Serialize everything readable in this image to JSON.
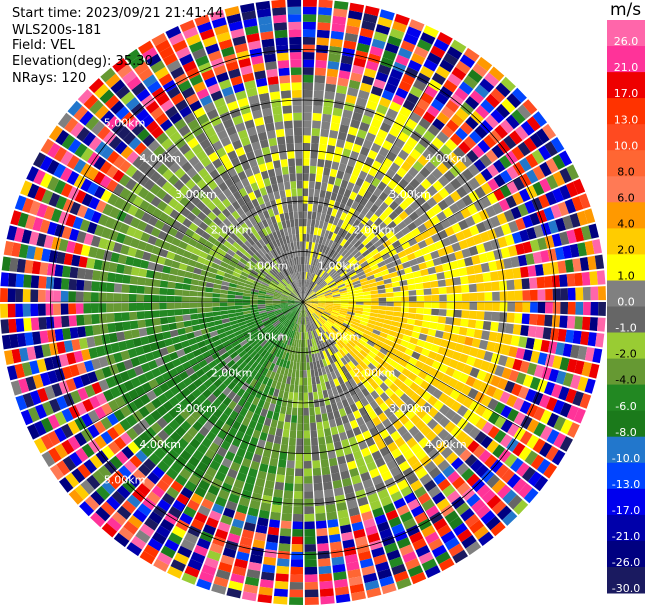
{
  "header": {
    "start_time": "Start time: 2023/09/21 21:41:44",
    "instrument": "WLS200s-181",
    "field": "Field: VEL",
    "elevation": "Elevation(deg): 35.30",
    "nrays": "NRays: 120"
  },
  "chart_data": {
    "type": "heatmap",
    "projection": "polar (PPI scan)",
    "field": "VEL",
    "unit": "m/s",
    "nrays": 120,
    "elevation_deg": 35.3,
    "range_km": [
      0,
      6.0
    ],
    "range_rings_km": [
      1.0,
      2.0,
      3.0,
      4.0,
      5.0
    ],
    "ring_labels": [
      "1.00km",
      "2.00km",
      "3.00km",
      "4.00km",
      "5.00km"
    ],
    "grid": true,
    "colorbar": {
      "placement": "right",
      "ticks": [
        "26.0",
        "21.0",
        "17.0",
        "13.0",
        "10.0",
        "8.0",
        "6.0",
        "4.0",
        "2.0",
        "1.0",
        "0.0",
        "-1.0",
        "-2.0",
        "-4.0",
        "-6.0",
        "-8.0",
        "-10.0",
        "-13.0",
        "-17.0",
        "-21.0",
        "-26.0",
        "-30.0"
      ],
      "bands": [
        {
          "lo": 26,
          "hi": 30,
          "color": "#ff66aa"
        },
        {
          "lo": 21,
          "hi": 26,
          "color": "#ff3399"
        },
        {
          "lo": 17,
          "hi": 21,
          "color": "#ee0000"
        },
        {
          "lo": 13,
          "hi": 17,
          "color": "#ff3300"
        },
        {
          "lo": 10,
          "hi": 13,
          "color": "#ff4a20"
        },
        {
          "lo": 8,
          "hi": 10,
          "color": "#ff6633"
        },
        {
          "lo": 6,
          "hi": 8,
          "color": "#ff7a55"
        },
        {
          "lo": 4,
          "hi": 6,
          "color": "#ff9900"
        },
        {
          "lo": 2,
          "hi": 4,
          "color": "#ffcc00"
        },
        {
          "lo": 1,
          "hi": 2,
          "color": "#ffff00"
        },
        {
          "lo": 0,
          "hi": 1,
          "color": "#808080"
        },
        {
          "lo": -1,
          "hi": 0,
          "color": "#666666"
        },
        {
          "lo": -2,
          "hi": -1,
          "color": "#99cc33"
        },
        {
          "lo": -4,
          "hi": -2,
          "color": "#669933"
        },
        {
          "lo": -6,
          "hi": -4,
          "color": "#228822"
        },
        {
          "lo": -8,
          "hi": -6,
          "color": "#1b7a1b"
        },
        {
          "lo": -10,
          "hi": -8,
          "color": "#2277cc"
        },
        {
          "lo": -13,
          "hi": -10,
          "color": "#0044ff"
        },
        {
          "lo": -17,
          "hi": -13,
          "color": "#0000ee"
        },
        {
          "lo": -21,
          "hi": -17,
          "color": "#0000aa"
        },
        {
          "lo": -26,
          "hi": -21,
          "color": "#000080"
        },
        {
          "lo": -30,
          "hi": -26,
          "color": "#1a1a60"
        }
      ]
    },
    "sectors": [
      {
        "az_from": 0,
        "az_to": 60,
        "range_km": [
          0,
          4.2
        ],
        "dominant_ms": "2.0 to 4.0",
        "note": "yellow / orange, receding"
      },
      {
        "az_from": 60,
        "az_to": 120,
        "range_km": [
          0,
          4.2
        ],
        "dominant_ms": "1.0 to 6.0",
        "note": "yellow / orange"
      },
      {
        "az_from": 120,
        "az_to": 170,
        "range_km": [
          0,
          3.0
        ],
        "dominant_ms": "0.0 to 2.0",
        "note": "yellow with grey"
      },
      {
        "az_from": 170,
        "az_to": 200,
        "range_km": [
          0,
          4.2
        ],
        "dominant_ms": "-2.0 to 0.0",
        "note": "grey / light green"
      },
      {
        "az_from": 200,
        "az_to": 260,
        "range_km": [
          0,
          4.2
        ],
        "dominant_ms": "-10.0 to -4.0",
        "note": "green / blue, approaching"
      },
      {
        "az_from": 260,
        "az_to": 320,
        "range_km": [
          0,
          4.2
        ],
        "dominant_ms": "-4.0 to -1.0",
        "note": "green"
      },
      {
        "az_from": 320,
        "az_to": 360,
        "range_km": [
          0,
          4.2
        ],
        "dominant_ms": "-1.0 to 0.0",
        "note": "grey"
      },
      {
        "az_from": 0,
        "az_to": 360,
        "range_km": [
          4.2,
          6.0
        ],
        "dominant_ms": "noisy",
        "note": "multicolour noise at far range"
      }
    ]
  },
  "colors": {
    "grid": "#000000",
    "ring_label": "#ffffff",
    "background": "#ffffff"
  }
}
